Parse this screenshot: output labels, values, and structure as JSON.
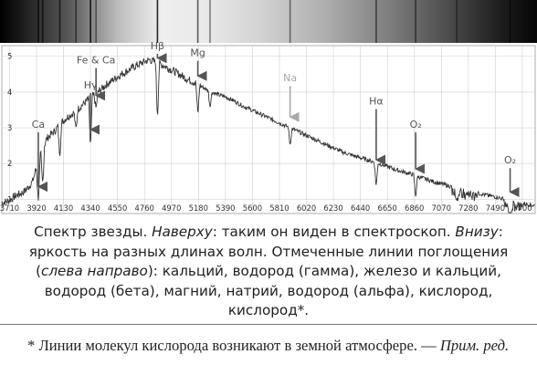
{
  "chart_data": {
    "type": "line",
    "title": "",
    "xlabel": "",
    "ylabel": "",
    "x_ticks": [
      3710,
      3920,
      4130,
      4340,
      4550,
      4760,
      4970,
      5180,
      5390,
      5600,
      5810,
      6020,
      6230,
      6440,
      6650,
      6860,
      7070,
      7280,
      7490,
      7700
    ],
    "y_ticks": [
      1,
      2,
      3,
      4,
      5
    ],
    "xlim": [
      3650,
      7800
    ],
    "ylim": [
      0.6,
      5.3
    ],
    "grid": true,
    "series": [
      {
        "x": [
          3650,
          3700,
          3760,
          3820,
          3860,
          3890,
          3920,
          3960,
          4000,
          4060,
          4100,
          4160,
          4220,
          4280,
          4340,
          4400,
          4460,
          4520,
          4580,
          4640,
          4700,
          4760,
          4800,
          4860,
          4920,
          4980,
          5040,
          5100,
          5160,
          5220,
          5280,
          5340,
          5400,
          5460,
          5520,
          5580,
          5640,
          5700,
          5760,
          5820,
          5880,
          5940,
          6000,
          6060,
          6120,
          6180,
          6240,
          6300,
          6360,
          6420,
          6480,
          6540,
          6600,
          6660,
          6720,
          6780,
          6840,
          6900,
          6960,
          7020,
          7080,
          7140,
          7200,
          7260,
          7320,
          7380,
          7440,
          7500,
          7560,
          7620,
          7680,
          7740,
          7800
        ],
        "y": [
          0.9,
          0.95,
          1.1,
          1.2,
          1.35,
          1.5,
          1.9,
          2.3,
          2.7,
          2.9,
          3.1,
          3.3,
          3.45,
          3.65,
          3.85,
          4.0,
          4.2,
          4.35,
          4.5,
          4.62,
          4.75,
          4.85,
          4.9,
          4.82,
          4.72,
          4.6,
          4.48,
          4.35,
          4.25,
          4.12,
          4.0,
          3.92,
          3.85,
          3.75,
          3.62,
          3.52,
          3.42,
          3.32,
          3.22,
          3.12,
          3.02,
          2.92,
          2.82,
          2.72,
          2.62,
          2.52,
          2.42,
          2.32,
          2.25,
          2.18,
          2.12,
          2.05,
          1.98,
          1.9,
          1.82,
          1.76,
          1.7,
          1.62,
          1.55,
          1.48,
          1.42,
          1.36,
          1.3,
          1.25,
          1.2,
          1.15,
          1.1,
          1.06,
          1.0,
          0.95,
          0.9,
          0.86,
          0.82
        ]
      }
    ],
    "absorption_lines": [
      {
        "x": 3934,
        "depth": 1.0
      },
      {
        "x": 3968,
        "depth": 0.9
      },
      {
        "x": 4101,
        "depth": 0.8
      },
      {
        "x": 4227,
        "depth": 0.5
      },
      {
        "x": 4340,
        "depth": 1.3
      },
      {
        "x": 4383,
        "depth": 0.4
      },
      {
        "x": 4861,
        "depth": 1.4
      },
      {
        "x": 5175,
        "depth": 0.8
      },
      {
        "x": 5270,
        "depth": 0.4
      },
      {
        "x": 5893,
        "depth": 0.45
      },
      {
        "x": 6563,
        "depth": 0.6
      },
      {
        "x": 6870,
        "depth": 0.55
      },
      {
        "x": 7190,
        "depth": 0.3
      },
      {
        "x": 7605,
        "depth": 0.7
      }
    ],
    "annotations": [
      {
        "label": "Ca",
        "x": 3934,
        "label_y": 3.0,
        "tip_y": 1.35,
        "color": "#555555"
      },
      {
        "label": "Hγ",
        "x": 4340,
        "label_y": 4.1,
        "tip_y": 2.95,
        "color": "#555555"
      },
      {
        "label": "Fe & Ca",
        "x": 4383,
        "label_y": 4.8,
        "tip_y": 3.9,
        "color": "#555555"
      },
      {
        "label": "Hβ",
        "x": 4861,
        "label_y": 5.2,
        "tip_y": 4.95,
        "color": "#555555"
      },
      {
        "label": "Mg",
        "x": 5175,
        "label_y": 5.0,
        "tip_y": 4.45,
        "color": "#555555"
      },
      {
        "label": "Na",
        "x": 5893,
        "label_y": 4.3,
        "tip_y": 3.3,
        "color": "#a8a8a8"
      },
      {
        "label": "Hα",
        "x": 6563,
        "label_y": 3.65,
        "tip_y": 2.1,
        "color": "#555555"
      },
      {
        "label": "O₂",
        "x": 6870,
        "label_y": 3.0,
        "tip_y": 1.85,
        "color": "#555555"
      },
      {
        "label": "O₂",
        "x": 7605,
        "label_y": 2.0,
        "tip_y": 1.2,
        "color": "#555555"
      }
    ],
    "colors": {
      "line": "#333333",
      "grid": "#d0d0d0",
      "arrow": "#555555",
      "na_arrow": "#a8a8a8"
    }
  },
  "caption": {
    "p1": "Спектр звезды. ",
    "p2_em": "Наверху",
    "p3": ": таким он виден в спектроскоп. ",
    "p4_em": "Внизу",
    "p5": ": яркость на разных длинах волн. Отмеченные линии поглощения (",
    "p6_em": "слева направо",
    "p7": "): кальций, водород (гамма), железо и кальций, водород (бета), магний, натрий, водород (альфа), кислород, кислород*."
  },
  "footnote": {
    "text": "* Линии молекул кислорода возникают в земной атмосфере. —",
    "em": "Прим. ред."
  }
}
